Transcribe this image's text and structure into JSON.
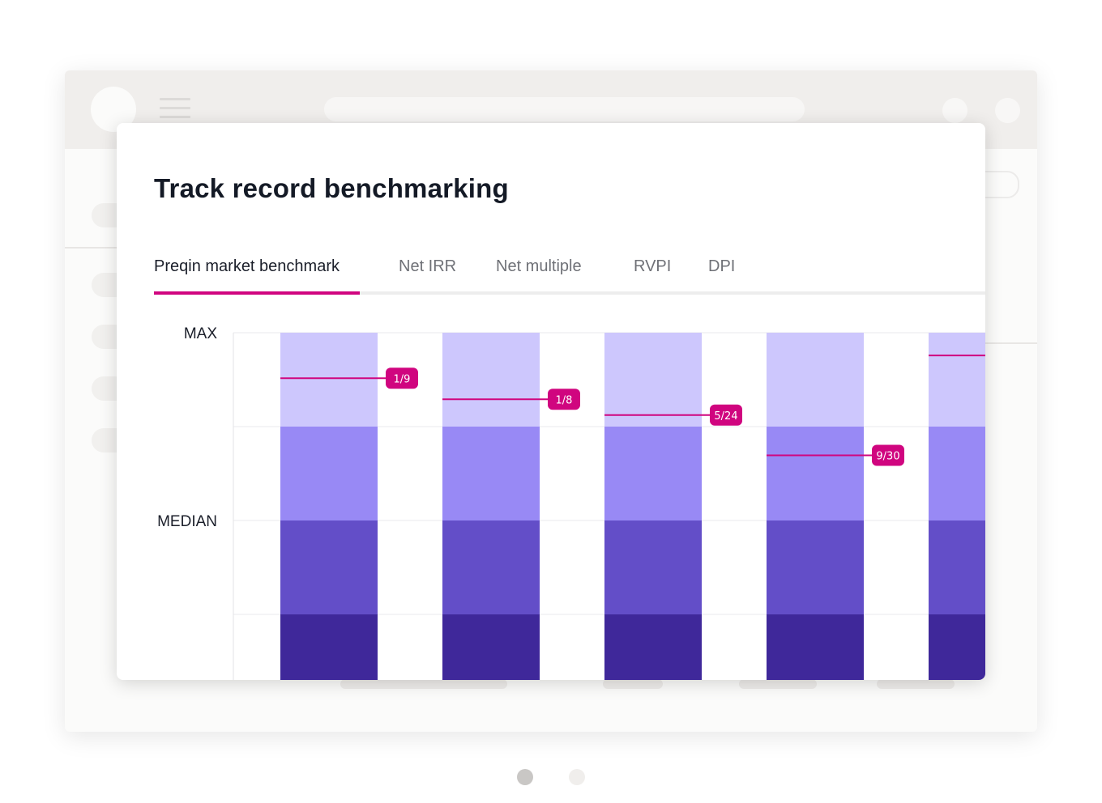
{
  "card": {
    "title": "Track record benchmarking",
    "tabs": [
      {
        "label": "Preqin market benchmark",
        "active": true
      },
      {
        "label": "Net IRR",
        "active": false
      },
      {
        "label": "Net multiple",
        "active": false
      },
      {
        "label": "RVPI",
        "active": false
      },
      {
        "label": "DPI",
        "active": false
      }
    ]
  },
  "colors": {
    "accent": "#d0057f",
    "quartile_top": "#cdc7fd",
    "quartile_upper_mid": "#9889f5",
    "quartile_lower_mid": "#634ec8",
    "quartile_bottom": "#3f289a"
  },
  "chart_data": {
    "type": "bar",
    "y_axis_labels": [
      "MAX",
      "MEDIAN"
    ],
    "bands_per_bar": 4,
    "grid": true,
    "markers": [
      {
        "label": "1/9",
        "fraction": 0.87
      },
      {
        "label": "1/8",
        "fraction": 0.81
      },
      {
        "label": "5/24",
        "fraction": 0.765
      },
      {
        "label": "9/30",
        "fraction": 0.65
      },
      {
        "label": "",
        "fraction": 0.935
      }
    ]
  },
  "pager": {
    "count": 2,
    "active_index": 0
  }
}
